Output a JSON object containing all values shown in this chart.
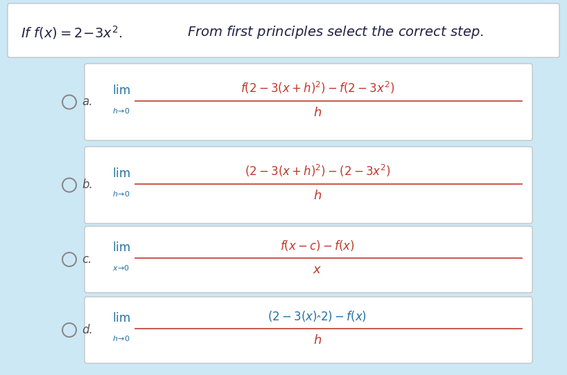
{
  "bg_color": "#cde8f5",
  "box_color": "#ffffff",
  "math_color_red": "#c0392b",
  "math_color_blue": "#2471a3",
  "lim_color": "#2471a3",
  "label_color": "#555555",
  "header_text1": "$\\mathit{If\\ f(x) = 2 - 3x^2.}$",
  "header_text2": "$\\mathit{From\\ first\\ principles\\ select\\ the\\ correct\\ step.}$",
  "options": [
    {
      "label": "a.",
      "lim_sub": "$h\\!\\rightarrow\\!0$",
      "numerator": "$f(2-3(x+h)^2) - f(2-3x^2)$",
      "denominator": "$h$",
      "num_color": "red",
      "denom_color": "red"
    },
    {
      "label": "b.",
      "lim_sub": "$h\\!\\rightarrow\\!0$",
      "numerator": "$(2-3(x+h)^2) - (2-3x^2)$",
      "denominator": "$h$",
      "num_color": "red",
      "denom_color": "red"
    },
    {
      "label": "c.",
      "lim_sub": "$x\\!\\rightarrow\\!0$",
      "numerator": "$f(x-c) - f(x)$",
      "denominator": "$x$",
      "num_color": "red",
      "denom_color": "red"
    },
    {
      "label": "d.",
      "lim_sub": "$h\\!\\rightarrow\\!0$",
      "numerator": "$(2-3(x)\\^{}2) - f(x)$",
      "denominator": "$h$",
      "num_color": "blue",
      "denom_color": "red"
    }
  ]
}
